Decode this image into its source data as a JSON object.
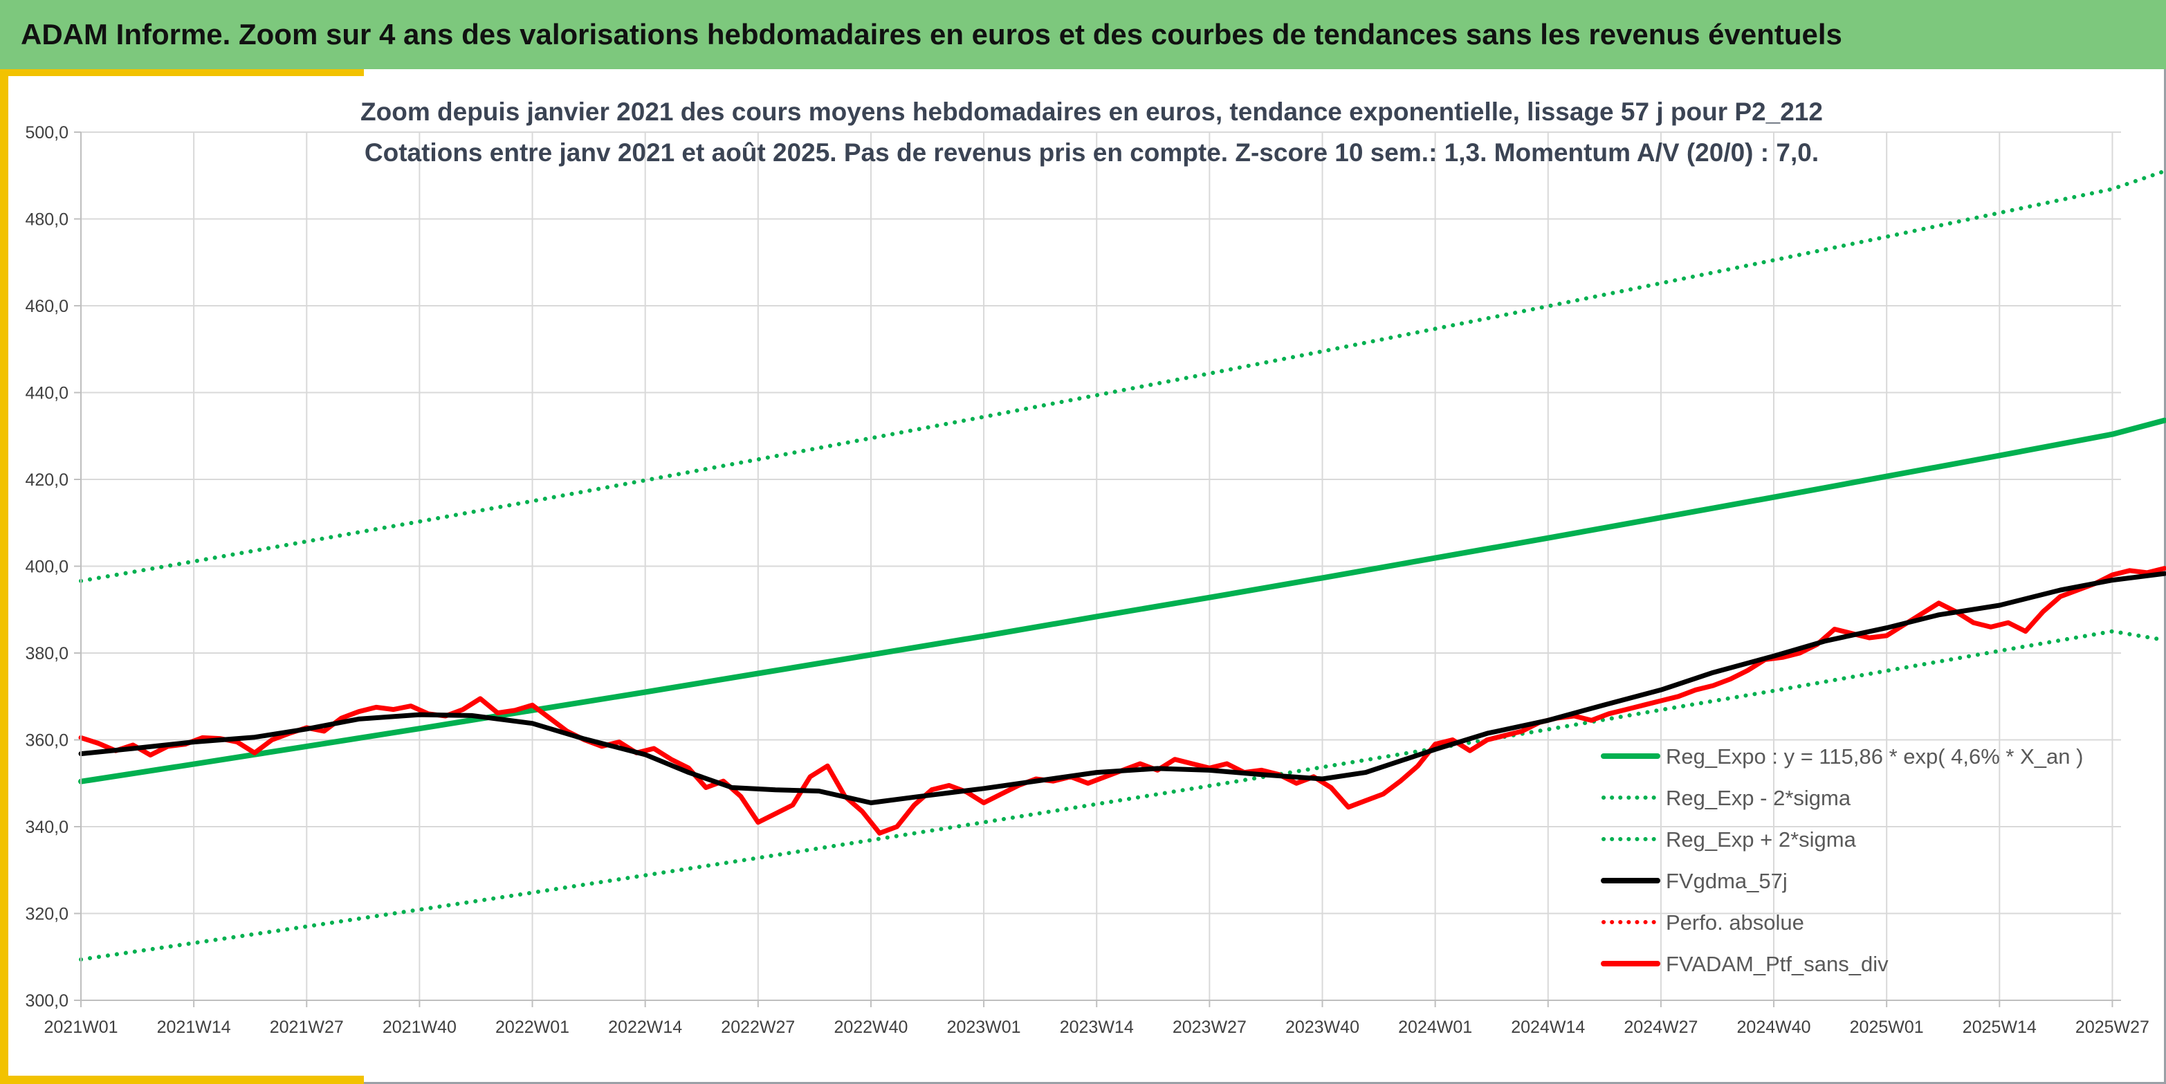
{
  "header": {
    "title": "ADAM Informe. Zoom sur 4 ans des valorisations hebdomadaires en euros et des courbes de tendances sans les revenus éventuels"
  },
  "chart_data": {
    "type": "line",
    "title": "Zoom depuis janvier 2021 des cours moyens hebdomadaires en euros, tendance exponentielle, lissage 57 j pour P2_212",
    "subtitle": "Cotations entre janv 2021 et août 2025. Pas de revenus pris en compte. Z-score 10 sem.: 1,3. Momentum A/V (20/0) : 7,0.",
    "xlabel": "",
    "ylabel": "",
    "ylim": [
      300,
      500
    ],
    "y_ticks": [
      "300,0",
      "320,0",
      "340,0",
      "360,0",
      "380,0",
      "400,0",
      "420,0",
      "440,0",
      "460,0",
      "480,0",
      "500,0"
    ],
    "x_range_weeks": [
      0,
      235
    ],
    "x_ticks": [
      {
        "label": "2021W01",
        "week": 0
      },
      {
        "label": "2021W14",
        "week": 13
      },
      {
        "label": "2021W27",
        "week": 26
      },
      {
        "label": "2021W40",
        "week": 39
      },
      {
        "label": "2022W01",
        "week": 52
      },
      {
        "label": "2022W14",
        "week": 65
      },
      {
        "label": "2022W27",
        "week": 78
      },
      {
        "label": "2022W40",
        "week": 91
      },
      {
        "label": "2023W01",
        "week": 104
      },
      {
        "label": "2023W14",
        "week": 117
      },
      {
        "label": "2023W27",
        "week": 130
      },
      {
        "label": "2023W40",
        "week": 143
      },
      {
        "label": "2024W01",
        "week": 156
      },
      {
        "label": "2024W14",
        "week": 169
      },
      {
        "label": "2024W27",
        "week": 182
      },
      {
        "label": "2024W40",
        "week": 195
      },
      {
        "label": "2025W01",
        "week": 208
      },
      {
        "label": "2025W14",
        "week": 221
      },
      {
        "label": "2025W27",
        "week": 234
      }
    ],
    "grid": "vertical and horizontal",
    "legend_position": "bottom-right",
    "series": [
      {
        "name": "Reg_Expo : y = 115,86 * exp( 4,6% *  X_an )",
        "color": "#00b050",
        "style": "solid",
        "x": [
          0,
          13,
          26,
          39,
          52,
          65,
          78,
          91,
          104,
          117,
          130,
          143,
          156,
          169,
          182,
          195,
          208,
          221,
          234,
          240
        ],
        "values": [
          350.4,
          354.4,
          358.5,
          362.6,
          366.8,
          371.0,
          375.3,
          379.6,
          383.9,
          388.4,
          392.8,
          397.3,
          401.9,
          406.5,
          411.2,
          415.9,
          420.7,
          425.5,
          430.4,
          433.6
        ]
      },
      {
        "name": "Reg_Exp - 2*sigma",
        "color": "#00b050",
        "style": "dotted",
        "x": [
          0,
          13,
          26,
          39,
          52,
          65,
          78,
          91,
          104,
          117,
          130,
          143,
          156,
          169,
          182,
          195,
          208,
          221,
          234,
          240
        ],
        "values": [
          309.4,
          313.2,
          317.0,
          320.9,
          324.8,
          328.8,
          332.8,
          336.9,
          341.0,
          345.2,
          349.4,
          353.7,
          358.0,
          362.4,
          366.9,
          371.3,
          375.9,
          380.5,
          385.0,
          383.0
        ]
      },
      {
        "name": "Reg_Exp + 2*sigma",
        "color": "#00b050",
        "style": "dotted",
        "x": [
          0,
          13,
          26,
          39,
          52,
          65,
          78,
          91,
          104,
          117,
          130,
          143,
          156,
          169,
          182,
          195,
          208,
          221,
          234,
          240
        ],
        "values": [
          396.6,
          401.1,
          405.7,
          410.3,
          415.0,
          419.8,
          424.6,
          429.5,
          434.4,
          439.4,
          444.4,
          449.5,
          454.7,
          459.9,
          465.2,
          470.5,
          475.9,
          481.4,
          486.9,
          491.0
        ]
      },
      {
        "name": "FVgdma_57j",
        "color": "#000000",
        "style": "solid",
        "x": [
          0,
          6,
          13,
          20,
          26,
          32,
          39,
          45,
          52,
          58,
          65,
          70,
          75,
          80,
          85,
          91,
          96,
          104,
          110,
          117,
          124,
          130,
          136,
          143,
          148,
          156,
          162,
          169,
          175,
          182,
          188,
          195,
          201,
          208,
          214,
          221,
          228,
          234,
          240
        ],
        "values": [
          356.8,
          358.0,
          359.5,
          360.6,
          362.5,
          364.8,
          365.8,
          365.6,
          363.8,
          360.2,
          356.6,
          352.5,
          349.0,
          348.5,
          348.2,
          345.5,
          346.8,
          348.8,
          350.5,
          352.5,
          353.4,
          353.0,
          352.0,
          351.0,
          352.5,
          357.8,
          361.5,
          364.5,
          367.8,
          371.5,
          375.5,
          379.3,
          382.8,
          385.8,
          388.8,
          391.0,
          394.5,
          396.8,
          398.3
        ]
      },
      {
        "name": "Perfo. absolue",
        "color": "#ff0000",
        "style": "dotted",
        "x": [],
        "values": []
      },
      {
        "name": "FVADAM_Ptf_sans_div",
        "color": "#ff0000",
        "style": "solid",
        "x": [
          0,
          2,
          4,
          6,
          8,
          10,
          12,
          14,
          16,
          18,
          20,
          22,
          24,
          26,
          28,
          30,
          32,
          34,
          36,
          38,
          40,
          42,
          44,
          46,
          48,
          50,
          52,
          54,
          56,
          58,
          60,
          62,
          64,
          66,
          68,
          70,
          72,
          74,
          76,
          78,
          80,
          82,
          84,
          86,
          88,
          90,
          92,
          94,
          96,
          98,
          100,
          102,
          104,
          106,
          108,
          110,
          112,
          114,
          116,
          118,
          120,
          122,
          124,
          126,
          128,
          130,
          132,
          134,
          136,
          138,
          140,
          142,
          144,
          146,
          148,
          150,
          152,
          154,
          156,
          158,
          160,
          162,
          164,
          166,
          168,
          170,
          172,
          174,
          176,
          178,
          180,
          182,
          184,
          186,
          188,
          190,
          192,
          194,
          196,
          198,
          200,
          202,
          204,
          206,
          208,
          210,
          212,
          214,
          216,
          218,
          220,
          222,
          224,
          226,
          228,
          230,
          232,
          234,
          236,
          238,
          240
        ],
        "values": [
          360.5,
          359.2,
          357.5,
          358.8,
          356.5,
          358.5,
          359.0,
          360.5,
          360.3,
          359.5,
          357.0,
          360.0,
          361.5,
          362.8,
          362.0,
          365.0,
          366.5,
          367.5,
          367.0,
          367.8,
          366.0,
          365.5,
          367.0,
          369.5,
          366.2,
          366.8,
          368.0,
          365.0,
          362.0,
          360.0,
          358.5,
          359.5,
          357.0,
          358.0,
          355.5,
          353.5,
          349.0,
          350.5,
          347.0,
          341.0,
          343.0,
          345.0,
          351.5,
          354.0,
          347.0,
          343.5,
          338.5,
          340.0,
          345.0,
          348.5,
          349.5,
          348.0,
          345.5,
          347.5,
          349.5,
          351.0,
          350.5,
          351.5,
          350.0,
          351.5,
          353.0,
          354.5,
          353.0,
          355.5,
          354.5,
          353.5,
          354.5,
          352.5,
          353.0,
          352.0,
          350.0,
          351.5,
          349.0,
          344.5,
          346.0,
          347.5,
          350.5,
          354.0,
          359.0,
          360.0,
          357.5,
          360.0,
          361.0,
          362.0,
          364.0,
          365.0,
          365.5,
          364.5,
          366.0,
          367.0,
          368.0,
          369.0,
          370.0,
          371.5,
          372.5,
          374.0,
          376.0,
          378.5,
          379.0,
          380.0,
          382.0,
          385.5,
          384.5,
          383.5,
          384.0,
          386.5,
          389.0,
          391.5,
          389.5,
          387.0,
          386.0,
          387.0,
          385.0,
          389.5,
          393.0,
          394.5,
          396.0,
          398.0,
          399.0,
          398.5,
          399.5
        ]
      }
    ]
  }
}
